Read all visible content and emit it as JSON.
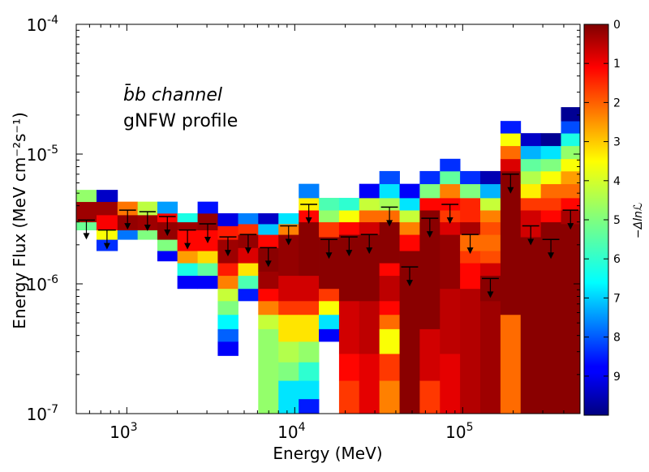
{
  "chart_data": {
    "type": "heatmap",
    "title": "",
    "xlabel": "Energy (MeV)",
    "ylabel": "Energy Flux (MeV cm⁻²s⁻¹)",
    "x_scale": "log",
    "y_scale": "log",
    "xlim": [
      500,
      500000
    ],
    "ylim": [
      1e-07,
      0.0001
    ],
    "x_ticks": [
      {
        "value": 1000,
        "base": "10",
        "exp": "3"
      },
      {
        "value": 10000,
        "base": "10",
        "exp": "4"
      },
      {
        "value": 100000,
        "base": "10",
        "exp": "5"
      }
    ],
    "y_ticks": [
      {
        "value": 1e-07,
        "base": "10",
        "exp": "-7"
      },
      {
        "value": 1e-06,
        "base": "10",
        "exp": "-6"
      },
      {
        "value": 1e-05,
        "base": "10",
        "exp": "-5"
      },
      {
        "value": 0.0001,
        "base": "10",
        "exp": "-4"
      }
    ],
    "annotations": [
      "b̄b channel",
      "gNFW profile"
    ],
    "colorbar": {
      "label": "−Δlnℒ",
      "min": 0,
      "max": 10,
      "ticks": [
        "0",
        "1",
        "2",
        "3",
        "4",
        "5",
        "6",
        "7",
        "8",
        "9"
      ],
      "colormap": "jet_reversed"
    },
    "energy_bins": [
      {
        "emin": 500,
        "emax": 660,
        "upper_limit": 3.1e-06,
        "cells": [
          [
            2.6e-06,
            3e-06,
            5.2
          ],
          [
            3e-06,
            4.3e-06,
            0.3
          ],
          [
            4.3e-06,
            5.3e-06,
            4.8
          ]
        ]
      },
      {
        "emin": 660,
        "emax": 880,
        "upper_limit": 2.6e-06,
        "cells": [
          [
            1.8e-06,
            2.2e-06,
            8.3
          ],
          [
            2.2e-06,
            2.6e-06,
            3.8
          ],
          [
            2.6e-06,
            3.4e-06,
            1.2
          ],
          [
            3.4e-06,
            4.3e-06,
            0.3
          ],
          [
            4.3e-06,
            5.3e-06,
            9.3
          ]
        ]
      },
      {
        "emin": 880,
        "emax": 1160,
        "upper_limit": 3.7e-06,
        "cells": [
          [
            2.2e-06,
            2.6e-06,
            7.6
          ],
          [
            2.6e-06,
            3.4e-06,
            0.2
          ],
          [
            3.4e-06,
            4.3e-06,
            2.4
          ]
        ]
      },
      {
        "emin": 1160,
        "emax": 1520,
        "upper_limit": 3.6e-06,
        "cells": [
          [
            2.2e-06,
            2.6e-06,
            5.0
          ],
          [
            2.6e-06,
            3.4e-06,
            0.3
          ],
          [
            3.4e-06,
            4.3e-06,
            4.4
          ]
        ]
      },
      {
        "emin": 1520,
        "emax": 2000,
        "upper_limit": 3.3e-06,
        "cells": [
          [
            1.5e-06,
            1.8e-06,
            8.8
          ],
          [
            1.8e-06,
            2.2e-06,
            5.0
          ],
          [
            2.2e-06,
            3e-06,
            0.2
          ],
          [
            3e-06,
            3.5e-06,
            1.3
          ],
          [
            3.5e-06,
            4.3e-06,
            7.2
          ]
        ]
      },
      {
        "emin": 2000,
        "emax": 2640,
        "upper_limit": 2.6e-06,
        "cells": [
          [
            9.2e-07,
            1.16e-06,
            8.8
          ],
          [
            1.16e-06,
            1.45e-06,
            6.0
          ],
          [
            1.45e-06,
            1.8e-06,
            2.8
          ],
          [
            1.8e-06,
            2.6e-06,
            1.3
          ],
          [
            2.6e-06,
            3e-06,
            0.3
          ],
          [
            3e-06,
            3.5e-06,
            6.0
          ]
        ]
      },
      {
        "emin": 2640,
        "emax": 3480,
        "upper_limit": 2.9e-06,
        "cells": [
          [
            9.2e-07,
            1.16e-06,
            8.8
          ],
          [
            1.16e-06,
            1.45e-06,
            5.3
          ],
          [
            1.45e-06,
            1.8e-06,
            3.4
          ],
          [
            1.8e-06,
            2.6e-06,
            1.3
          ],
          [
            2.6e-06,
            3.5e-06,
            0.2
          ],
          [
            3.5e-06,
            4.3e-06,
            8.6
          ]
        ]
      },
      {
        "emin": 3480,
        "emax": 4600,
        "upper_limit": 2.3e-06,
        "cells": [
          [
            2.8e-07,
            3.6e-07,
            8.8
          ],
          [
            3.6e-07,
            4.5e-07,
            7.8
          ],
          [
            4.5e-07,
            5.8e-07,
            6.3
          ],
          [
            5.8e-07,
            7.4e-07,
            5.0
          ],
          [
            7.4e-07,
            9.2e-07,
            4.3
          ],
          [
            9.2e-07,
            1.16e-06,
            2.5
          ],
          [
            1.16e-06,
            1.45e-06,
            1.5
          ],
          [
            1.45e-06,
            2.2e-06,
            0.3
          ],
          [
            2.2e-06,
            2.8e-06,
            1.5
          ],
          [
            2.8e-06,
            3.5e-06,
            9.0
          ]
        ]
      },
      {
        "emin": 4600,
        "emax": 6060,
        "upper_limit": 2.4e-06,
        "cells": [
          [
            7.4e-07,
            9.2e-07,
            8.5
          ],
          [
            9.2e-07,
            1.16e-06,
            5.5
          ],
          [
            1.16e-06,
            1.45e-06,
            3.5
          ],
          [
            1.45e-06,
            1.9e-06,
            0.9
          ],
          [
            1.9e-06,
            2.4e-06,
            0.2
          ],
          [
            2.4e-06,
            2.9e-06,
            1.7
          ],
          [
            2.9e-06,
            3.5e-06,
            7.5
          ]
        ]
      },
      {
        "emin": 6060,
        "emax": 8000,
        "upper_limit": 1.9e-06,
        "cells": [
          [
            1e-07,
            4.5e-07,
            4.8
          ],
          [
            4.5e-07,
            5.8e-07,
            4.3
          ],
          [
            5.8e-07,
            7.4e-07,
            2.5
          ],
          [
            7.4e-07,
            9.2e-07,
            1.3
          ],
          [
            9.2e-07,
            1.25e-06,
            0.3
          ],
          [
            1.25e-06,
            1.9e-06,
            0.1
          ],
          [
            1.9e-06,
            2.4e-06,
            1.3
          ],
          [
            2.4e-06,
            2.9e-06,
            6.8
          ],
          [
            2.9e-06,
            3.5e-06,
            9.3
          ]
        ]
      },
      {
        "emin": 8000,
        "emax": 10560,
        "upper_limit": 2.8e-06,
        "cells": [
          [
            1e-07,
            1.8e-07,
            6.5
          ],
          [
            1.8e-07,
            2.5e-07,
            5.0
          ],
          [
            2.5e-07,
            3.6e-07,
            4.5
          ],
          [
            3.6e-07,
            5.8e-07,
            3.5
          ],
          [
            5.8e-07,
            7.4e-07,
            1.8
          ],
          [
            7.4e-07,
            1.16e-06,
            0.8
          ],
          [
            1.16e-06,
            2.4e-06,
            0.2
          ],
          [
            2.4e-06,
            2.9e-06,
            2.5
          ],
          [
            2.9e-06,
            3.5e-06,
            6.5
          ]
        ]
      },
      {
        "emin": 10560,
        "emax": 13920,
        "upper_limit": 4.1e-06,
        "cells": [
          [
            1e-07,
            1.3e-07,
            8.5
          ],
          [
            1.3e-07,
            1.8e-07,
            6.5
          ],
          [
            1.8e-07,
            2.5e-07,
            5.8
          ],
          [
            2.5e-07,
            3.6e-07,
            4.8
          ],
          [
            3.6e-07,
            5.8e-07,
            3.5
          ],
          [
            5.8e-07,
            7.4e-07,
            1.8
          ],
          [
            7.4e-07,
            1.16e-06,
            0.8
          ],
          [
            1.16e-06,
            3e-06,
            0.1
          ],
          [
            3e-06,
            3.7e-06,
            1.3
          ],
          [
            3.7e-06,
            4.6e-06,
            3.6
          ],
          [
            4.6e-06,
            5.9e-06,
            7.5
          ]
        ]
      },
      {
        "emin": 13920,
        "emax": 18360,
        "upper_limit": 2.2e-06,
        "cells": [
          [
            3.6e-07,
            4.5e-07,
            8.8
          ],
          [
            4.5e-07,
            5.8e-07,
            6.5
          ],
          [
            5.8e-07,
            7.4e-07,
            3.8
          ],
          [
            7.4e-07,
            9.2e-07,
            1.8
          ],
          [
            9.2e-07,
            2.3e-06,
            0.1
          ],
          [
            2.3e-06,
            3e-06,
            1.8
          ],
          [
            3e-06,
            3.7e-06,
            4.8
          ],
          [
            3.7e-06,
            4.6e-06,
            5.5
          ]
        ]
      },
      {
        "emin": 18360,
        "emax": 24200,
        "upper_limit": 2.3e-06,
        "cells": [
          [
            1e-07,
            1.8e-07,
            1.8
          ],
          [
            1.8e-07,
            2.9e-07,
            1.3
          ],
          [
            2.9e-07,
            7.4e-07,
            0.8
          ],
          [
            7.4e-07,
            2.4e-06,
            0.1
          ],
          [
            2.4e-06,
            3e-06,
            1.3
          ],
          [
            3e-06,
            3.7e-06,
            3.8
          ],
          [
            3.7e-06,
            4.6e-06,
            5.8
          ]
        ]
      },
      {
        "emin": 24200,
        "emax": 31920,
        "upper_limit": 2.4e-06,
        "cells": [
          [
            1e-07,
            2.9e-07,
            1.0
          ],
          [
            2.9e-07,
            7.4e-07,
            0.6
          ],
          [
            7.4e-07,
            2.4e-06,
            0.1
          ],
          [
            2.4e-06,
            3e-06,
            0.8
          ],
          [
            3e-06,
            3.7e-06,
            2.3
          ],
          [
            3.7e-06,
            4.6e-06,
            4.3
          ],
          [
            4.6e-06,
            5.9e-06,
            8.8
          ]
        ]
      },
      {
        "emin": 31920,
        "emax": 42100,
        "upper_limit": 3.9e-06,
        "cells": [
          [
            1e-07,
            1.8e-07,
            2.5
          ],
          [
            1.8e-07,
            2.9e-07,
            1.8
          ],
          [
            2.9e-07,
            4.5e-07,
            3.8
          ],
          [
            4.5e-07,
            5.8e-07,
            2.3
          ],
          [
            5.8e-07,
            7.4e-07,
            1.3
          ],
          [
            7.4e-07,
            1.16e-06,
            0.6
          ],
          [
            1.16e-06,
            1.45e-06,
            1.3
          ],
          [
            1.45e-06,
            3e-06,
            0.1
          ],
          [
            3e-06,
            3.7e-06,
            2.3
          ],
          [
            3.7e-06,
            4.6e-06,
            4.6
          ],
          [
            4.6e-06,
            5.9e-06,
            6.5
          ],
          [
            5.9e-06,
            7.4e-06,
            8.0
          ]
        ]
      },
      {
        "emin": 42100,
        "emax": 55500,
        "upper_limit": 1.35e-06,
        "cells": [
          [
            1e-07,
            1.8e-06,
            0.1
          ],
          [
            1.8e-06,
            2.4e-06,
            1.3
          ],
          [
            2.4e-06,
            3e-06,
            2.5
          ],
          [
            3e-06,
            3.7e-06,
            4.3
          ],
          [
            3.7e-06,
            4.6e-06,
            6.5
          ],
          [
            4.6e-06,
            5.9e-06,
            8.8
          ]
        ]
      },
      {
        "emin": 55500,
        "emax": 73200,
        "upper_limit": 3.2e-06,
        "cells": [
          [
            1e-07,
            1.8e-07,
            1.8
          ],
          [
            1.8e-07,
            4.5e-07,
            0.8
          ],
          [
            4.5e-07,
            3.7e-06,
            0.1
          ],
          [
            3.7e-06,
            4.6e-06,
            1.3
          ],
          [
            4.6e-06,
            5.9e-06,
            5.0
          ],
          [
            5.9e-06,
            7.4e-06,
            8.3
          ]
        ]
      },
      {
        "emin": 73200,
        "emax": 96500,
        "upper_limit": 4.1e-06,
        "cells": [
          [
            1e-07,
            2.9e-07,
            1.0
          ],
          [
            2.9e-07,
            9.2e-07,
            0.6
          ],
          [
            9.2e-07,
            2.4e-06,
            0.2
          ],
          [
            2.4e-06,
            3e-06,
            0.9
          ],
          [
            3e-06,
            3.7e-06,
            1.8
          ],
          [
            3.7e-06,
            4.6e-06,
            1.3
          ],
          [
            4.6e-06,
            5.9e-06,
            2.5
          ],
          [
            5.9e-06,
            7.4e-06,
            5.3
          ],
          [
            7.4e-06,
            9.2e-06,
            8.3
          ]
        ]
      },
      {
        "emin": 96500,
        "emax": 127300,
        "upper_limit": 2.4e-06,
        "cells": [
          [
            1e-07,
            9.2e-07,
            0.5
          ],
          [
            9.2e-07,
            1.45e-06,
            1.3
          ],
          [
            1.45e-06,
            1.8e-06,
            1.8
          ],
          [
            1.8e-06,
            2.4e-06,
            2.3
          ],
          [
            2.4e-06,
            3e-06,
            0.4
          ],
          [
            3e-06,
            4.6e-06,
            1.6
          ],
          [
            4.6e-06,
            5.9e-06,
            5.0
          ],
          [
            5.9e-06,
            7.4e-06,
            8.3
          ]
        ]
      },
      {
        "emin": 127300,
        "emax": 167900,
        "upper_limit": 1.1e-06,
        "cells": [
          [
            1e-07,
            7.4e-07,
            0.3
          ],
          [
            7.4e-07,
            1.16e-06,
            0.1
          ],
          [
            1.16e-06,
            1.45e-06,
            0.8
          ],
          [
            1.45e-06,
            1.8e-06,
            2.0
          ],
          [
            1.8e-06,
            2.4e-06,
            2.3
          ],
          [
            2.4e-06,
            3e-06,
            2.0
          ],
          [
            3e-06,
            3.7e-06,
            2.5
          ],
          [
            3.7e-06,
            4.6e-06,
            4.3
          ],
          [
            4.6e-06,
            5.9e-06,
            7.0
          ],
          [
            5.9e-06,
            7.4e-06,
            9.5
          ]
        ]
      },
      {
        "emin": 167900,
        "emax": 221400,
        "upper_limit": 7e-06,
        "cells": [
          [
            1e-07,
            5.8e-07,
            2.3
          ],
          [
            5.8e-07,
            7.4e-06,
            0.1
          ],
          [
            7.4e-06,
            9.2e-06,
            0.9
          ],
          [
            9.2e-06,
            1.16e-05,
            2.3
          ],
          [
            1.16e-05,
            1.45e-05,
            3.8
          ],
          [
            1.45e-05,
            1.8e-05,
            8.5
          ]
        ]
      },
      {
        "emin": 221400,
        "emax": 292000,
        "upper_limit": 2.8e-06,
        "cells": [
          [
            1e-07,
            2.3e-06,
            0.1
          ],
          [
            2.3e-06,
            3.7e-06,
            0.8
          ],
          [
            3.7e-06,
            4.6e-06,
            1.8
          ],
          [
            4.6e-06,
            5.9e-06,
            3.6
          ],
          [
            5.9e-06,
            7.4e-06,
            4.5
          ],
          [
            7.4e-06,
            9.2e-06,
            5.3
          ],
          [
            9.2e-06,
            1.16e-05,
            7.0
          ],
          [
            1.16e-05,
            1.45e-05,
            9.3
          ]
        ]
      },
      {
        "emin": 292000,
        "emax": 385000,
        "upper_limit": 2.2e-06,
        "cells": [
          [
            1e-07,
            3e-06,
            0.1
          ],
          [
            3e-06,
            3.7e-06,
            1.3
          ],
          [
            3.7e-06,
            4.6e-06,
            1.8
          ],
          [
            4.6e-06,
            5.9e-06,
            2.3
          ],
          [
            5.9e-06,
            7.4e-06,
            3.8
          ],
          [
            7.4e-06,
            9.2e-06,
            5.0
          ],
          [
            9.2e-06,
            1.16e-05,
            6.5
          ],
          [
            1.16e-05,
            1.45e-05,
            9.8
          ]
        ]
      },
      {
        "emin": 385000,
        "emax": 500000,
        "upper_limit": 3.7e-06,
        "cells": [
          [
            1e-07,
            2.9e-06,
            0.1
          ],
          [
            2.9e-06,
            3.7e-06,
            0.4
          ],
          [
            3.7e-06,
            4.6e-06,
            1.3
          ],
          [
            4.6e-06,
            5.9e-06,
            2.3
          ],
          [
            5.9e-06,
            7.4e-06,
            2.8
          ],
          [
            7.4e-06,
            9.2e-06,
            3.8
          ],
          [
            9.2e-06,
            1.16e-05,
            4.8
          ],
          [
            1.16e-05,
            1.45e-05,
            6.0
          ],
          [
            1.45e-05,
            1.8e-05,
            8.0
          ],
          [
            1.8e-05,
            2.3e-05,
            9.8
          ]
        ]
      }
    ]
  }
}
